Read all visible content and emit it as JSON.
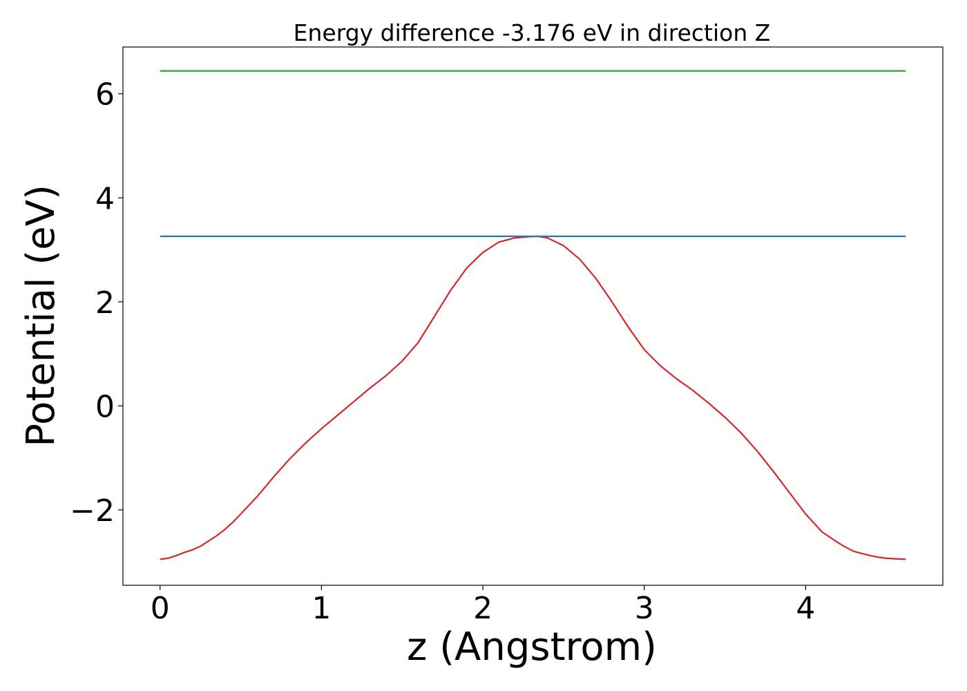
{
  "chart_data": {
    "type": "line",
    "title": "Energy difference -3.176 eV in direction Z",
    "xlabel": "z (Angstrom)",
    "ylabel": "Potential (eV)",
    "xlim": [
      -0.23,
      4.85
    ],
    "ylim": [
      -3.45,
      6.9
    ],
    "xticks": [
      0,
      1,
      2,
      3,
      4
    ],
    "xtick_labels": [
      "0",
      "1",
      "2",
      "3",
      "4"
    ],
    "yticks": [
      -2,
      0,
      2,
      4,
      6
    ],
    "ytick_labels": [
      "−2",
      "0",
      "2",
      "4",
      "6"
    ],
    "grid": false,
    "series": [
      {
        "color": "#d62728",
        "x": [
          0.0,
          0.05,
          0.1,
          0.15,
          0.2,
          0.25,
          0.3,
          0.35,
          0.4,
          0.45,
          0.5,
          0.6,
          0.7,
          0.8,
          0.9,
          1.0,
          1.1,
          1.2,
          1.3,
          1.4,
          1.5,
          1.6,
          1.7,
          1.8,
          1.9,
          2.0,
          2.1,
          2.2,
          2.3,
          2.34,
          2.4,
          2.5,
          2.6,
          2.7,
          2.8,
          2.9,
          3.0,
          3.1,
          3.2,
          3.3,
          3.4,
          3.5,
          3.6,
          3.7,
          3.8,
          3.9,
          4.0,
          4.1,
          4.2,
          4.25,
          4.3,
          4.35,
          4.4,
          4.45,
          4.5,
          4.55,
          4.62
        ],
        "y": [
          -2.95,
          -2.93,
          -2.88,
          -2.82,
          -2.77,
          -2.7,
          -2.6,
          -2.5,
          -2.38,
          -2.24,
          -2.08,
          -1.75,
          -1.38,
          -1.03,
          -0.72,
          -0.44,
          -0.18,
          0.08,
          0.34,
          0.58,
          0.86,
          1.22,
          1.72,
          2.22,
          2.65,
          2.95,
          3.15,
          3.23,
          3.255,
          3.26,
          3.23,
          3.08,
          2.82,
          2.45,
          2.0,
          1.52,
          1.08,
          0.77,
          0.52,
          0.3,
          0.05,
          -0.22,
          -0.52,
          -0.87,
          -1.26,
          -1.67,
          -2.08,
          -2.42,
          -2.63,
          -2.72,
          -2.8,
          -2.84,
          -2.88,
          -2.91,
          -2.93,
          -2.94,
          -2.95
        ]
      },
      {
        "color": "#1f77b4",
        "x": [
          0.0,
          4.62
        ],
        "y": [
          3.26,
          3.26
        ]
      },
      {
        "color": "#2ca02c",
        "x": [
          0.0,
          4.62
        ],
        "y": [
          6.44,
          6.44
        ]
      }
    ]
  }
}
